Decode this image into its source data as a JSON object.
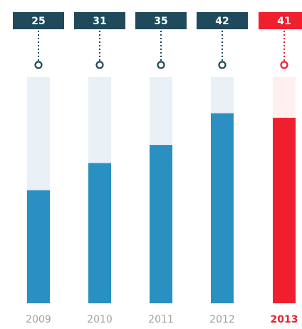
{
  "chart_data": {
    "type": "bar",
    "categories": [
      "2009",
      "2010",
      "2011",
      "2012",
      "2013"
    ],
    "values": [
      25,
      31,
      35,
      42,
      41
    ],
    "value_labels": [
      "25",
      "31",
      "35",
      "42",
      "41"
    ],
    "ylim": [
      0,
      50
    ],
    "highlight_index": 4,
    "grid": false,
    "legend": "none",
    "colors": {
      "bar": "#2a8fc1",
      "track": "#e9f0f6",
      "highlight_bar": "#ef1f2d",
      "highlight_track": "#fdf0ee",
      "label_bg": "#1e4a5c",
      "label_text": "#ffffff",
      "highlight_label_bg": "#ef1f2d",
      "connector": "#1e4a5c",
      "axis_text": "#9aa3a8",
      "highlight_axis_text": "#ef1f2d"
    }
  }
}
